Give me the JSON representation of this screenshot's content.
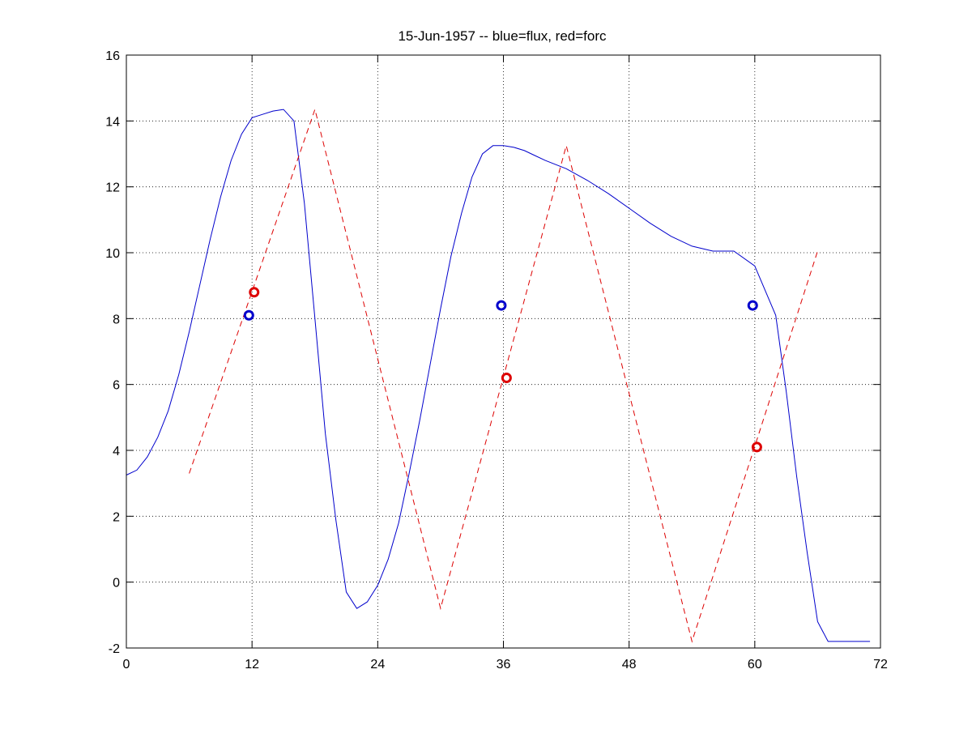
{
  "chart_data": {
    "type": "line",
    "title": "15-Jun-1957 -- blue=flux, red=forc",
    "xlabel": "",
    "ylabel": "",
    "xlim": [
      0,
      72
    ],
    "ylim": [
      -2,
      16
    ],
    "xticks": [
      0,
      12,
      24,
      36,
      48,
      60,
      72
    ],
    "yticks": [
      -2,
      0,
      2,
      4,
      6,
      8,
      10,
      12,
      14,
      16
    ],
    "grid": true,
    "colors": {
      "flux": "#0000cc",
      "forc": "#dd0000",
      "axis": "#000000"
    },
    "series": [
      {
        "style": "solid",
        "color": "#0000cc",
        "x": [
          0,
          1,
          2,
          3,
          4,
          5,
          6,
          7,
          8,
          9,
          10,
          11,
          12,
          13,
          14,
          15,
          16,
          17,
          18,
          19,
          20,
          21,
          22,
          23,
          24,
          25,
          26,
          27,
          28,
          29,
          30,
          31,
          32,
          33,
          34,
          35,
          36,
          37,
          38,
          39,
          40,
          42,
          44,
          46,
          48,
          50,
          52,
          54,
          56,
          58,
          60,
          62,
          63,
          64,
          65,
          66,
          67,
          68,
          69,
          70,
          71
        ],
        "y": [
          3.25,
          3.4,
          3.8,
          4.4,
          5.2,
          6.3,
          7.6,
          9.0,
          10.4,
          11.7,
          12.8,
          13.6,
          14.1,
          14.2,
          14.3,
          14.35,
          14.0,
          11.5,
          8.0,
          4.5,
          1.9,
          -0.3,
          -0.8,
          -0.6,
          -0.1,
          0.7,
          1.8,
          3.3,
          4.9,
          6.6,
          8.3,
          9.9,
          11.2,
          12.3,
          13.0,
          13.25,
          13.25,
          13.2,
          13.1,
          12.95,
          12.8,
          12.55,
          12.2,
          11.8,
          11.35,
          10.9,
          10.5,
          10.2,
          10.05,
          10.05,
          9.6,
          8.1,
          5.8,
          3.2,
          0.9,
          -1.2,
          -1.8,
          -1.8,
          -1.8,
          -1.8,
          -1.8
        ]
      },
      {
        "style": "dashed",
        "color": "#dd0000",
        "x": [
          6,
          18,
          30,
          42,
          54,
          66
        ],
        "y": [
          3.3,
          14.35,
          -0.8,
          13.25,
          -1.8,
          10.05
        ]
      }
    ],
    "markers": [
      {
        "series": "blue",
        "color": "#0000cc",
        "x": 11.7,
        "y": 8.1
      },
      {
        "series": "blue",
        "color": "#0000cc",
        "x": 35.8,
        "y": 8.4
      },
      {
        "series": "blue",
        "color": "#0000cc",
        "x": 59.8,
        "y": 8.4
      },
      {
        "series": "red",
        "color": "#dd0000",
        "x": 12.2,
        "y": 8.8
      },
      {
        "series": "red",
        "color": "#dd0000",
        "x": 36.3,
        "y": 6.2
      },
      {
        "series": "red",
        "color": "#dd0000",
        "x": 60.2,
        "y": 4.1
      }
    ]
  }
}
